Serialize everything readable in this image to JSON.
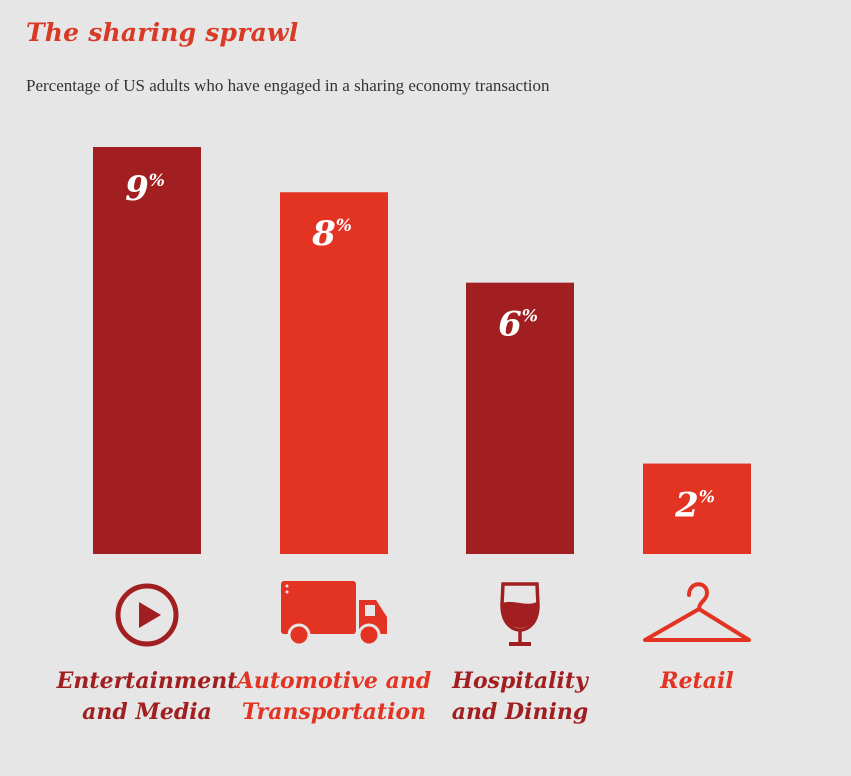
{
  "title": "The sharing sprawl",
  "subtitle": "Percentage of US adults who have engaged in a sharing economy transaction",
  "colors": {
    "dark": "#a11f20",
    "bright": "#e23323",
    "background": "#e6e6e6",
    "title": "#d93a26"
  },
  "chart_data": {
    "type": "bar",
    "title": "The sharing sprawl",
    "subtitle": "Percentage of US adults who have engaged in a sharing economy transaction",
    "unit": "%",
    "categories": [
      {
        "lines": [
          "Entertainment",
          "and Media"
        ],
        "value": 9,
        "label": "9",
        "icon": "play-icon",
        "color": "#a11f20"
      },
      {
        "lines": [
          "Automotive and",
          "Transportation"
        ],
        "value": 8,
        "label": "8",
        "icon": "truck-icon",
        "color": "#e23323"
      },
      {
        "lines": [
          "Hospitality",
          "and Dining"
        ],
        "value": 6,
        "label": "6",
        "icon": "wine-glass-icon",
        "color": "#a11f20"
      },
      {
        "lines": [
          "Retail"
        ],
        "value": 2,
        "label": "2",
        "icon": "hanger-icon",
        "color": "#e23323"
      }
    ],
    "ylim": [
      0,
      9
    ],
    "grid": false,
    "legend": "none"
  }
}
